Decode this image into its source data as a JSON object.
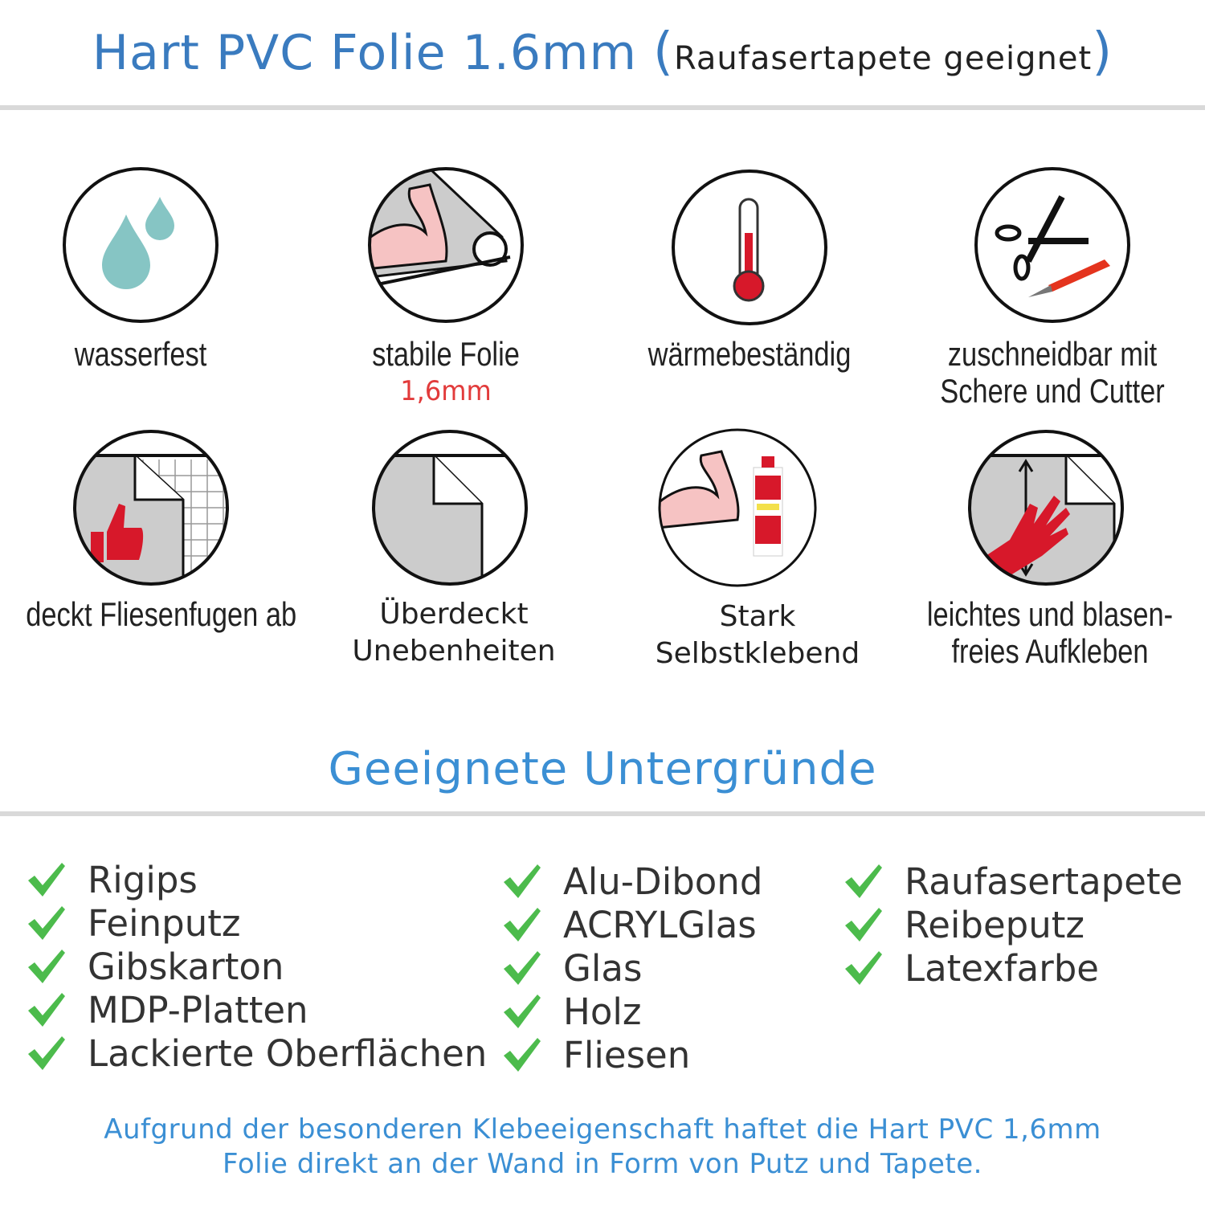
{
  "header": {
    "title_main": "Hart PVC Folie 1.6mm",
    "title_paren_open": "(",
    "title_sub": "Raufasertapete geeignet",
    "title_paren_close": ")"
  },
  "colors": {
    "accent_blue": "#3a7bbf",
    "check_green": "#4cbb4c",
    "highlight_red": "#e23b3b",
    "divider_gray": "#d9d9d9"
  },
  "features": [
    {
      "icon": "water-drops-icon",
      "label": "wasserfest"
    },
    {
      "icon": "strong-arm-roll-icon",
      "label": "stabile Folie",
      "sub": "1,6mm"
    },
    {
      "icon": "thermometer-icon",
      "label": "wärmebeständig"
    },
    {
      "icon": "scissors-cutter-icon",
      "label": "zuschneidbar mit",
      "label2": "Schere und Cutter"
    },
    {
      "icon": "thumbs-up-tiles-icon",
      "label": "deckt Fliesenfugen ab"
    },
    {
      "icon": "foil-corner-icon",
      "label": "Überdeckt",
      "label2": "Unebenheiten"
    },
    {
      "icon": "arm-glue-icon",
      "label": "Stark",
      "label2": "Selbstklebend"
    },
    {
      "icon": "hand-smoothing-icon",
      "label": "leichtes und blasen-",
      "label2": "freies Aufkleben"
    }
  ],
  "surfaces": {
    "title": "Geeignete Untergründe",
    "columns": [
      [
        "Rigips",
        "Feinputz",
        "Gibskarton",
        "MDP-Platten",
        "Lackierte Oberflächen"
      ],
      [
        "Alu-Dibond",
        "ACRYLGlas",
        "Glas",
        "Holz",
        "Fliesen"
      ],
      [
        "Raufasertapete",
        "Reibeputz",
        "Latexfarbe"
      ]
    ]
  },
  "footer": {
    "line1": "Aufgrund der besonderen Klebeeigenschaft haftet die Hart PVC 1,6mm",
    "line2": "Folie direkt an der Wand in Form von Putz und Tapete."
  }
}
